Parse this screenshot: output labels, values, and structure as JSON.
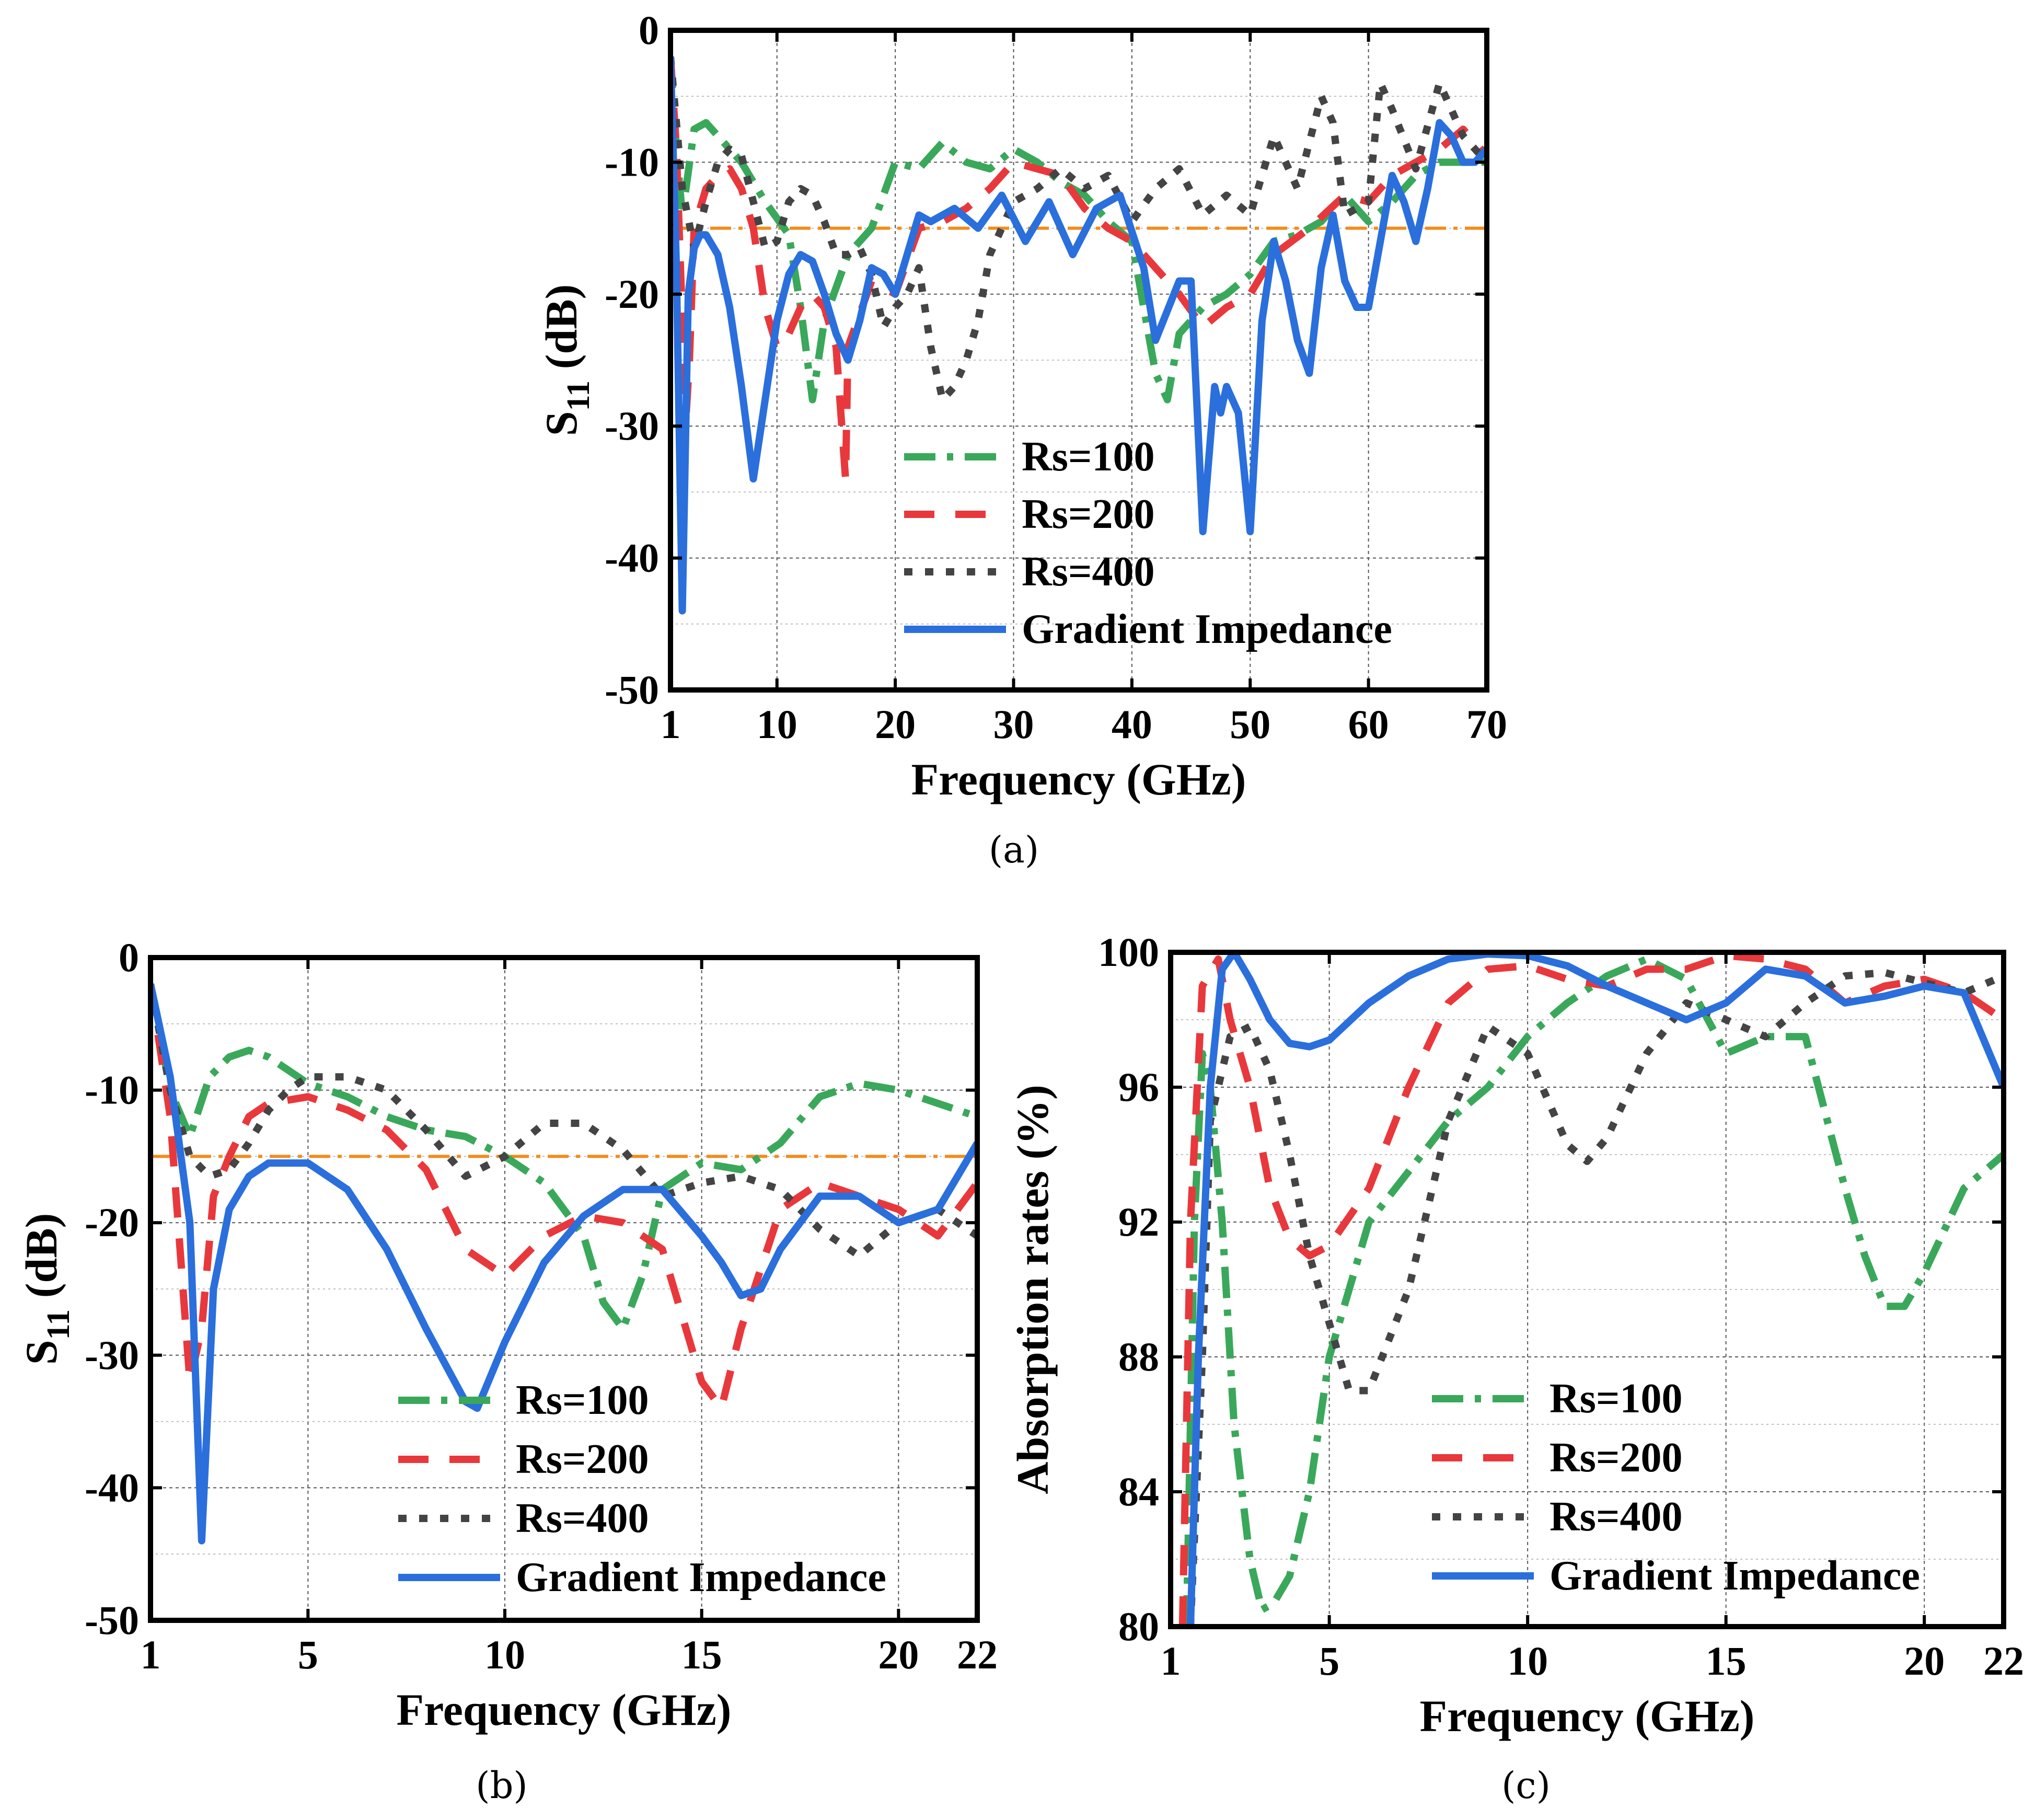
{
  "legend_entries": [
    "Rs=100",
    "Rs=200",
    "Rs=400",
    "Gradient Impedance"
  ],
  "series_colors": {
    "Rs=100": "#3aa85a",
    "Rs=200": "#e8383c",
    "Rs=400": "#444444",
    "Gradient Impedance": "#2a6fdc",
    "threshold": "#f28c1c"
  },
  "chart_data": [
    {
      "id": "a",
      "caption": "(a)",
      "type": "line",
      "xlabel": "Frequency (GHz)",
      "ylabel_main": "S",
      "ylabel_sub": "11",
      "ylabel_suffix": " (dB)",
      "xlim": [
        1,
        70
      ],
      "ylim": [
        -50,
        0
      ],
      "xticks": [
        1,
        10,
        20,
        30,
        40,
        50,
        60,
        70
      ],
      "xtick_labels": [
        "1",
        "10",
        "20",
        "30",
        "40",
        "50",
        "60",
        "70"
      ],
      "yticks": [
        0,
        -10,
        -20,
        -30,
        -40,
        -50
      ],
      "ytick_labels": [
        "0",
        "-10",
        "-20",
        "-30",
        "-40",
        "-50"
      ],
      "threshold": -15,
      "series": [
        {
          "name": "Rs=100",
          "x": [
            1,
            1.5,
            2,
            3,
            4,
            5,
            7,
            9,
            11,
            12,
            13,
            14,
            16,
            18,
            20,
            22,
            24,
            26,
            28,
            30,
            32,
            34,
            36,
            38,
            40,
            42,
            43,
            44,
            46,
            48,
            50,
            52,
            54,
            56,
            58,
            60,
            62,
            64,
            66,
            68,
            70
          ],
          "y": [
            -2,
            -9,
            -14,
            -7.5,
            -7,
            -8,
            -10,
            -13,
            -15.5,
            -21,
            -28,
            -22,
            -17,
            -15,
            -10,
            -10.5,
            -8.5,
            -10,
            -10.5,
            -9,
            -10,
            -11.5,
            -12.5,
            -14.5,
            -16,
            -26,
            -28,
            -23,
            -21,
            -20,
            -18.5,
            -16,
            -15.5,
            -14.5,
            -12.5,
            -14.5,
            -13,
            -11,
            -10,
            -10,
            -10
          ]
        },
        {
          "name": "Rs=200",
          "x": [
            1,
            1.5,
            2,
            2.2,
            2.6,
            3,
            4,
            5,
            6,
            7,
            8,
            9,
            10,
            11,
            12,
            13,
            14,
            15,
            15.8,
            16,
            18,
            20,
            22,
            24,
            26,
            28,
            30,
            32,
            34,
            36,
            38,
            40,
            42,
            44,
            46,
            48,
            50,
            52,
            55,
            58,
            60,
            62,
            64,
            66,
            68,
            70
          ],
          "y": [
            -2,
            -9,
            -22,
            -31,
            -25,
            -15,
            -12,
            -11,
            -10.5,
            -12,
            -15,
            -21,
            -24,
            -23,
            -21,
            -20,
            -21,
            -24,
            -34,
            -24,
            -19,
            -20,
            -15,
            -14.5,
            -13.5,
            -12,
            -10,
            -10.5,
            -11,
            -13.5,
            -15,
            -16,
            -18,
            -20,
            -22.5,
            -21,
            -20,
            -17,
            -15,
            -12.5,
            -13,
            -11,
            -10,
            -9,
            -7.5,
            -9.5
          ]
        },
        {
          "name": "Rs=400",
          "x": [
            1,
            2,
            3,
            4,
            5,
            6,
            7,
            8,
            9,
            10,
            11,
            12,
            13,
            14,
            15,
            16,
            17,
            18,
            19,
            20,
            21,
            22,
            23,
            24,
            25,
            26,
            27,
            28,
            30,
            32,
            34,
            36,
            38,
            40,
            42,
            44,
            46,
            48,
            50,
            52,
            54,
            56,
            57,
            58,
            60,
            61,
            62,
            64,
            66,
            68,
            70
          ],
          "y": [
            -2,
            -12,
            -16.5,
            -13,
            -10,
            -9,
            -9.5,
            -13,
            -16.5,
            -16,
            -13,
            -12,
            -12.5,
            -14.5,
            -17,
            -17,
            -16.5,
            -18.5,
            -22.5,
            -21,
            -20,
            -18,
            -24,
            -28,
            -27,
            -25,
            -22,
            -17,
            -13,
            -12,
            -10.5,
            -12,
            -11,
            -14.5,
            -12,
            -10.5,
            -14,
            -12.5,
            -14,
            -8,
            -12,
            -5,
            -7,
            -14,
            -13,
            -4,
            -6,
            -10.5,
            -4,
            -8,
            -10
          ]
        },
        {
          "name": "Gradient Impedance",
          "x": [
            1,
            1.5,
            2,
            2.5,
            3,
            3.5,
            4,
            5,
            6,
            7,
            8,
            9,
            10,
            11,
            12,
            13,
            14,
            15,
            15.5,
            16,
            17,
            18,
            19,
            20,
            21,
            22,
            23,
            25,
            27,
            29,
            31,
            33,
            35,
            37,
            39,
            41,
            42,
            44,
            45,
            46,
            47,
            47.5,
            48,
            49,
            50,
            51,
            52,
            53,
            54,
            55,
            56,
            57,
            58,
            59,
            60,
            61,
            62,
            63,
            64,
            65,
            66,
            67,
            68,
            69,
            70
          ],
          "y": [
            -2,
            -18,
            -44,
            -20,
            -16.5,
            -15.5,
            -15.5,
            -17,
            -21,
            -27,
            -34,
            -28,
            -22,
            -18.5,
            -17,
            -17.5,
            -20,
            -23,
            -24,
            -25,
            -22,
            -18,
            -18.5,
            -20,
            -17,
            -14,
            -14.5,
            -13.5,
            -15,
            -12.5,
            -16,
            -13,
            -17,
            -13.5,
            -12.5,
            -18,
            -23.5,
            -19,
            -19,
            -38,
            -27,
            -29,
            -27,
            -29,
            -38,
            -22,
            -16,
            -19,
            -23.5,
            -26,
            -18,
            -14,
            -19,
            -21,
            -21,
            -16,
            -11,
            -13,
            -16,
            -12,
            -7,
            -8,
            -10,
            -10,
            -9
          ]
        }
      ]
    },
    {
      "id": "b",
      "caption": "(b)",
      "type": "line",
      "xlabel": "Frequency (GHz)",
      "ylabel_main": "S",
      "ylabel_sub": "11",
      "ylabel_suffix": " (dB)",
      "xlim": [
        1,
        22
      ],
      "ylim": [
        -50,
        0
      ],
      "xticks": [
        1,
        5,
        10,
        15,
        20,
        22
      ],
      "xtick_labels": [
        "1",
        "5",
        "10",
        "15",
        "20",
        "22"
      ],
      "yticks": [
        0,
        -10,
        -20,
        -30,
        -40,
        -50
      ],
      "ytick_labels": [
        "0",
        "-10",
        "-20",
        "-30",
        "-40",
        "-50"
      ],
      "threshold": -15,
      "series": [
        {
          "name": "Rs=100",
          "x": [
            1,
            1.5,
            2,
            2.5,
            3,
            3.5,
            4,
            4.5,
            5,
            6,
            7,
            8,
            9,
            10,
            11,
            12,
            12.5,
            13,
            13.5,
            14,
            15,
            16,
            17,
            18,
            19,
            20,
            21,
            22
          ],
          "y": [
            -2,
            -10,
            -13.5,
            -9,
            -7.5,
            -7,
            -7.5,
            -8.5,
            -9.5,
            -10.5,
            -12,
            -13,
            -13.5,
            -15,
            -17,
            -21,
            -26,
            -28,
            -24,
            -17.5,
            -15.5,
            -16,
            -14,
            -10.5,
            -9.5,
            -10,
            -11,
            -12
          ]
        },
        {
          "name": "Rs=200",
          "x": [
            1,
            1.5,
            2,
            2.3,
            2.6,
            3,
            3.5,
            4,
            5,
            6,
            7,
            8,
            9,
            10,
            11,
            12,
            13,
            14,
            15,
            15.5,
            16,
            17,
            18,
            19,
            20,
            21,
            22
          ],
          "y": [
            -2,
            -12,
            -32,
            -28,
            -18,
            -15,
            -12,
            -11,
            -10.5,
            -11.5,
            -13,
            -16,
            -22,
            -24,
            -21,
            -19.5,
            -20,
            -22,
            -32,
            -34,
            -28,
            -19,
            -17,
            -18,
            -19,
            -21,
            -17
          ]
        },
        {
          "name": "Rs=400",
          "x": [
            1,
            1.5,
            2,
            2.5,
            3,
            3.5,
            4,
            4.5,
            5,
            6,
            7,
            8,
            9,
            10,
            11,
            12,
            13,
            14,
            15,
            16,
            17,
            18,
            19,
            20,
            21,
            22
          ],
          "y": [
            -2,
            -10,
            -15,
            -16.5,
            -16,
            -14,
            -11.5,
            -10,
            -9,
            -9,
            -10,
            -13,
            -16.5,
            -15,
            -12.5,
            -12.5,
            -14.5,
            -18,
            -17,
            -16.5,
            -17.5,
            -20.5,
            -22.5,
            -20,
            -19,
            -21
          ]
        },
        {
          "name": "Gradient Impedance",
          "x": [
            1,
            1.5,
            2,
            2.3,
            2.6,
            3,
            3.5,
            4,
            5,
            6,
            7,
            8,
            9,
            9.3,
            10,
            11,
            12,
            13,
            14,
            15,
            15.5,
            16,
            16.5,
            17,
            18,
            19,
            20,
            21,
            22
          ],
          "y": [
            -2,
            -9,
            -20,
            -44,
            -25,
            -19,
            -16.5,
            -15.5,
            -15.5,
            -17.5,
            -22,
            -28,
            -33.5,
            -34,
            -29,
            -23,
            -19.5,
            -17.5,
            -17.5,
            -21,
            -23,
            -25.5,
            -25,
            -22,
            -18,
            -18,
            -20,
            -19,
            -14
          ]
        }
      ]
    },
    {
      "id": "c",
      "caption": "(c)",
      "type": "line",
      "xlabel": "Frequency (GHz)",
      "ylabel": "Absorption rates (%)",
      "xlim": [
        1,
        22
      ],
      "ylim": [
        80,
        100
      ],
      "xticks": [
        1,
        5,
        10,
        15,
        20,
        22
      ],
      "xtick_labels": [
        "1",
        "5",
        "10",
        "15",
        "20",
        "22"
      ],
      "yticks": [
        80,
        84,
        88,
        92,
        96,
        100
      ],
      "ytick_labels": [
        "80",
        "84",
        "88",
        "92",
        "96",
        "100"
      ],
      "series": [
        {
          "name": "Rs=100",
          "x": [
            1.4,
            1.6,
            1.8,
            2,
            2.3,
            2.6,
            3,
            3.3,
            3.6,
            4,
            4.5,
            5,
            6,
            7,
            8,
            9,
            10,
            11,
            12,
            13,
            14,
            15,
            16,
            17,
            18,
            18.5,
            19,
            19.5,
            20,
            21,
            22
          ],
          "y": [
            80,
            92,
            97,
            96,
            92,
            86,
            82,
            80.5,
            80.7,
            81.5,
            84,
            88,
            92,
            93.5,
            95,
            96,
            97.5,
            98.5,
            99.3,
            99.8,
            99.2,
            97,
            97.5,
            97.5,
            93,
            91,
            89.5,
            89.5,
            90.5,
            93,
            94
          ]
        },
        {
          "name": "Rs=200",
          "x": [
            1.3,
            1.5,
            1.8,
            2.2,
            2.5,
            3,
            3.5,
            4,
            4.5,
            5,
            6,
            7,
            8,
            9,
            10,
            11,
            12,
            13,
            14,
            15,
            16,
            17,
            18,
            19,
            20,
            21,
            22
          ],
          "y": [
            80,
            92,
            99,
            99.8,
            98,
            96,
            93,
            91.5,
            91,
            91.3,
            93,
            96,
            98.5,
            99.5,
            99.6,
            99.2,
            99,
            99.5,
            99.5,
            99.9,
            99.8,
            99.5,
            98.5,
            99,
            99.2,
            98.8,
            98
          ]
        },
        {
          "name": "Rs=400",
          "x": [
            1.5,
            1.8,
            2,
            2.5,
            3,
            3.5,
            4,
            4.5,
            5,
            5.5,
            6,
            7,
            8,
            9,
            10,
            11,
            11.5,
            12,
            13,
            14,
            15,
            16,
            17,
            18,
            19,
            20,
            21,
            22
          ],
          "y": [
            80,
            88,
            95,
            97.5,
            97.8,
            96.5,
            94,
            91,
            89,
            87,
            87,
            90,
            95,
            97.8,
            97,
            94.3,
            93.8,
            94.5,
            97,
            98.5,
            98,
            97.5,
            98.5,
            99.3,
            99.4,
            99.1,
            98.8,
            99.3
          ]
        },
        {
          "name": "Gradient Impedance",
          "x": [
            1.5,
            1.7,
            2,
            2.3,
            2.6,
            3,
            3.5,
            4,
            4.5,
            5,
            6,
            7,
            8,
            9,
            10,
            11,
            12,
            13,
            14,
            15,
            16,
            17,
            18,
            19,
            20,
            21,
            22
          ],
          "y": [
            80,
            88,
            96,
            99.5,
            100,
            99.2,
            98,
            97.3,
            97.2,
            97.4,
            98.5,
            99.3,
            99.8,
            99.95,
            99.9,
            99.6,
            99,
            98.5,
            98,
            98.5,
            99.5,
            99.3,
            98.5,
            98.7,
            99,
            98.8,
            96
          ]
        }
      ]
    }
  ]
}
